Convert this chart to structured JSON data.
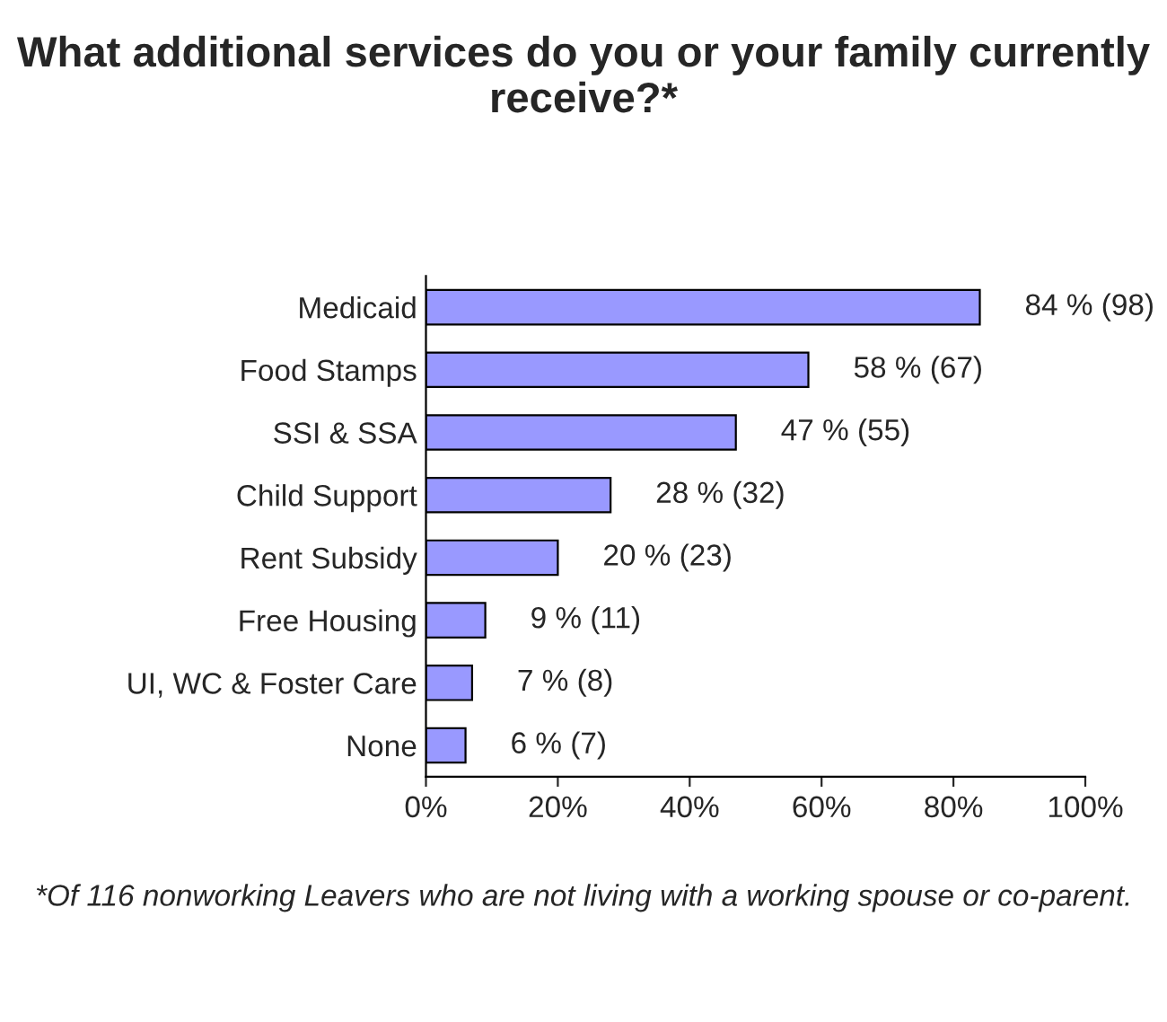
{
  "chart_data": {
    "type": "bar",
    "orientation": "horizontal",
    "title": "What additional services do you or your family currently receive?*",
    "categories": [
      "Medicaid",
      "Food Stamps",
      "SSI & SSA",
      "Child Support",
      "Rent Subsidy",
      "Free Housing",
      "UI, WC & Foster Care",
      "None"
    ],
    "values": [
      84,
      58,
      47,
      28,
      20,
      9,
      7,
      6
    ],
    "value_labels": [
      "84 % (98)",
      "58 % (67)",
      "47 % (55)",
      "28 % (32)",
      "20 % (23)",
      "9 % (11)",
      "7 % (8)",
      "6 % (7)"
    ],
    "color": "#9999ff",
    "xlim": [
      0,
      100
    ],
    "xticks": [
      {
        "value": 0,
        "label": "0%"
      },
      {
        "value": 20,
        "label": "20%"
      },
      {
        "value": 40,
        "label": "40%"
      },
      {
        "value": 60,
        "label": "60%"
      },
      {
        "value": 80,
        "label": "80%"
      },
      {
        "value": 100,
        "label": "100%"
      }
    ],
    "grid": false,
    "annotations": [
      "*Of 116 nonworking Leavers who are not living with a working spouse or co-parent."
    ]
  }
}
